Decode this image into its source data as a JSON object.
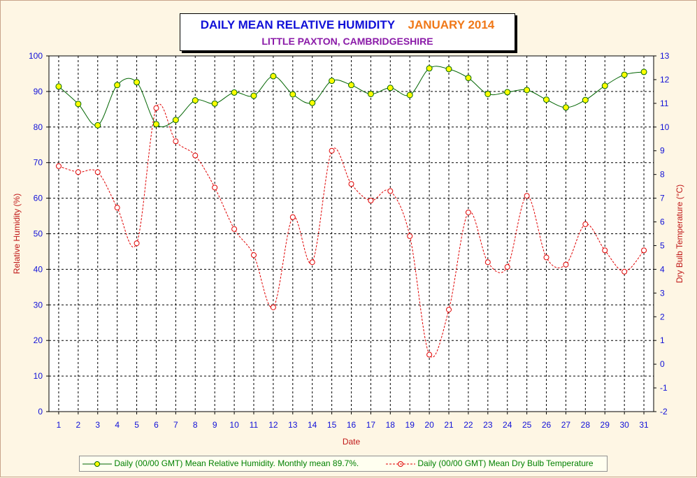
{
  "title": "DAILY MEAN RELATIVE HUMIDITY",
  "period": "JANUARY 2014",
  "subtitle": "LITTLE PAXTON, CAMBRIDGESHIRE",
  "xlabel": "Date",
  "ylabel_left": "Relative Humidity (%)",
  "ylabel_right": "Dry Bulb Temperature (°C)",
  "legend": {
    "humidity": "Daily (00/00 GMT) Mean Relative Humidity. Monthly mean 89.7%.",
    "temperature": "Daily (00/00 GMT) Mean Dry Bulb Temperature"
  },
  "colors": {
    "background": "#fef6e4",
    "humidity_line": "#006400",
    "humidity_marker": "#ffff00",
    "temperature_line": "#e00000",
    "title": "#1010d8",
    "period": "#f07818",
    "subtitle": "#8a1aa8",
    "left_axis_text": "#1010d8",
    "axis_label": "#c01818",
    "legend_text": "#008000"
  },
  "chart_data": {
    "type": "line",
    "x": [
      1,
      2,
      3,
      4,
      5,
      6,
      7,
      8,
      9,
      10,
      11,
      12,
      13,
      14,
      15,
      16,
      17,
      18,
      19,
      20,
      21,
      22,
      23,
      24,
      25,
      26,
      27,
      28,
      29,
      30,
      31
    ],
    "xlim": [
      0.5,
      31.5
    ],
    "ylim_left": [
      0,
      100
    ],
    "ylim_right": [
      -2,
      13
    ],
    "y_ticks_left": [
      0,
      10,
      20,
      30,
      40,
      50,
      60,
      70,
      80,
      90,
      100
    ],
    "y_ticks_right": [
      -2,
      -1,
      0,
      1,
      2,
      3,
      4,
      5,
      6,
      7,
      8,
      9,
      10,
      11,
      12,
      13
    ],
    "grid": true,
    "legend_position": "bottom",
    "series": [
      {
        "name": "Daily (00/00 GMT) Mean Relative Humidity. Monthly mean 89.7%.",
        "axis": "left",
        "values": [
          91.4,
          86.5,
          80.5,
          91.8,
          92.6,
          80.8,
          82.0,
          87.5,
          86.6,
          89.7,
          88.8,
          94.3,
          89.2,
          86.8,
          93.0,
          91.8,
          89.3,
          91.0,
          89.0,
          96.5,
          96.3,
          93.8,
          89.3,
          89.8,
          90.4,
          87.7,
          85.5,
          87.6,
          91.6,
          94.7,
          95.5
        ]
      },
      {
        "name": "Daily (00/00 GMT) Mean Dry Bulb Temperature",
        "axis": "right",
        "values": [
          8.35,
          8.1,
          8.1,
          6.6,
          5.1,
          10.8,
          9.4,
          8.8,
          7.45,
          5.7,
          4.6,
          2.4,
          6.2,
          4.3,
          9.0,
          7.6,
          6.9,
          7.3,
          5.4,
          0.4,
          2.3,
          6.4,
          4.3,
          4.1,
          7.1,
          4.5,
          4.2,
          5.9,
          4.8,
          3.9,
          4.8
        ]
      }
    ]
  }
}
